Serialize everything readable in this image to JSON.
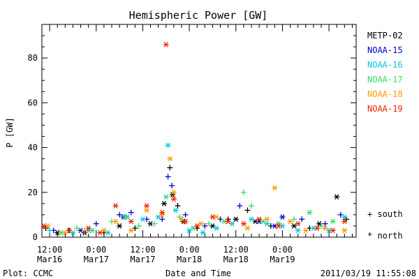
{
  "chart_data": {
    "type": "scatter",
    "title": "Hemispheric Power [GW]",
    "ylabel": "P [GW]",
    "xlabel": "Date and Time",
    "ylim": [
      0,
      95
    ],
    "xlim": [
      "2011-03-16 10:00",
      "2011-03-19 19:00"
    ],
    "y_ticks": [
      0,
      20,
      40,
      60,
      80
    ],
    "x_ticks": [
      {
        "time": "2011-03-16 12:00",
        "line1": "12:00",
        "line2": "Mar16"
      },
      {
        "time": "2011-03-17 00:00",
        "line1": "0:00",
        "line2": "Mar17"
      },
      {
        "time": "2011-03-17 12:00",
        "line1": "12:00",
        "line2": "Mar17"
      },
      {
        "time": "2011-03-18 00:00",
        "line1": "0:00",
        "line2": "Mar18"
      },
      {
        "time": "2011-03-18 12:00",
        "line1": "12:00",
        "line2": "Mar18"
      },
      {
        "time": "2011-03-19 00:00",
        "line1": "0:00",
        "line2": "Mar19"
      }
    ],
    "grid": false,
    "legend_position": "right",
    "marker_legend": [
      {
        "symbol": "+",
        "label": "south"
      },
      {
        "symbol": "*",
        "label": "north"
      }
    ],
    "footer_left": "Plot: CCMC",
    "footer_right": "2011/03/19 11:55:08",
    "series": [
      {
        "name": "METP-02",
        "color": "#000000",
        "points": [
          [
            "2011-03-16 11:00",
            "+",
            4
          ],
          [
            "2011-03-16 14:00",
            "*",
            2
          ],
          [
            "2011-03-16 17:00",
            "+",
            3
          ],
          [
            "2011-03-16 21:00",
            "*",
            2
          ],
          [
            "2011-03-17 02:00",
            "+",
            2
          ],
          [
            "2011-03-17 06:00",
            "*",
            5
          ],
          [
            "2011-03-17 10:00",
            "+",
            4
          ],
          [
            "2011-03-17 14:00",
            "*",
            6
          ],
          [
            "2011-03-17 17:30",
            "*",
            15
          ],
          [
            "2011-03-17 19:00",
            "+",
            31
          ],
          [
            "2011-03-17 19:40",
            "*",
            19
          ],
          [
            "2011-03-17 21:00",
            "+",
            14
          ],
          [
            "2011-03-17 22:30",
            "*",
            7
          ],
          [
            "2011-03-18 02:00",
            "+",
            4
          ],
          [
            "2011-03-18 06:00",
            "*",
            5
          ],
          [
            "2011-03-18 10:00",
            "+",
            8
          ],
          [
            "2011-03-18 12:00",
            "*",
            8
          ],
          [
            "2011-03-18 15:00",
            "+",
            12
          ],
          [
            "2011-03-18 17:00",
            "*",
            7
          ],
          [
            "2011-03-18 21:00",
            "+",
            5
          ],
          [
            "2011-03-19 03:00",
            "*",
            5
          ],
          [
            "2011-03-19 07:00",
            "+",
            4
          ],
          [
            "2011-03-19 09:30",
            "*",
            6
          ],
          [
            "2011-03-19 14:00",
            "*",
            18
          ],
          [
            "2011-03-19 16:30",
            "+",
            8
          ]
        ]
      },
      {
        "name": "NOAA-15",
        "color": "#0000cc",
        "points": [
          [
            "2011-03-16 13:00",
            "+",
            3
          ],
          [
            "2011-03-16 20:00",
            "*",
            3
          ],
          [
            "2011-03-17 00:00",
            "+",
            6
          ],
          [
            "2011-03-17 06:00",
            "+",
            10
          ],
          [
            "2011-03-17 07:00",
            "*",
            9
          ],
          [
            "2011-03-17 09:00",
            "+",
            11
          ],
          [
            "2011-03-17 13:00",
            "+",
            8
          ],
          [
            "2011-03-17 17:00",
            "+",
            8
          ],
          [
            "2011-03-17 18:30",
            "+",
            27
          ],
          [
            "2011-03-17 19:30",
            "+",
            23
          ],
          [
            "2011-03-17 23:00",
            "+",
            10
          ],
          [
            "2011-03-18 04:00",
            "+",
            5
          ],
          [
            "2011-03-18 08:00",
            "+",
            8
          ],
          [
            "2011-03-18 13:00",
            "+",
            14
          ],
          [
            "2011-03-18 18:00",
            "*",
            7
          ],
          [
            "2011-03-18 22:00",
            "*",
            5
          ],
          [
            "2011-03-19 00:00",
            "*",
            9
          ],
          [
            "2011-03-19 05:00",
            "+",
            8
          ],
          [
            "2011-03-19 11:00",
            "+",
            6
          ],
          [
            "2011-03-19 15:00",
            "+",
            10
          ]
        ]
      },
      {
        "name": "NOAA-16",
        "color": "#00c8e0",
        "points": [
          [
            "2011-03-16 12:00",
            "+",
            3
          ],
          [
            "2011-03-16 18:00",
            "*",
            2
          ],
          [
            "2011-03-16 22:00",
            "*",
            3
          ],
          [
            "2011-03-17 03:00",
            "*",
            2
          ],
          [
            "2011-03-17 08:00",
            "*",
            9
          ],
          [
            "2011-03-17 12:00",
            "*",
            8
          ],
          [
            "2011-03-17 16:00",
            "*",
            9
          ],
          [
            "2011-03-17 18:30",
            "*",
            41
          ],
          [
            "2011-03-17 20:30",
            "*",
            12
          ],
          [
            "2011-03-18 00:00",
            "*",
            3
          ],
          [
            "2011-03-18 03:30",
            "*",
            2
          ],
          [
            "2011-03-18 07:00",
            "*",
            4
          ],
          [
            "2011-03-18 11:00",
            "*",
            6
          ],
          [
            "2011-03-18 16:00",
            "*",
            8
          ],
          [
            "2011-03-18 20:00",
            "*",
            6
          ],
          [
            "2011-03-19 00:00",
            "*",
            5
          ],
          [
            "2011-03-19 04:00",
            "*",
            3
          ],
          [
            "2011-03-19 08:00",
            "*",
            4
          ],
          [
            "2011-03-19 12:00",
            "*",
            3
          ],
          [
            "2011-03-19 16:00",
            "*",
            9
          ]
        ]
      },
      {
        "name": "NOAA-17",
        "color": "#33dd66",
        "points": [
          [
            "2011-03-16 15:00",
            "*",
            2
          ],
          [
            "2011-03-16 19:00",
            "+",
            4
          ],
          [
            "2011-03-16 23:00",
            "*",
            3
          ],
          [
            "2011-03-17 04:00",
            "+",
            7
          ],
          [
            "2011-03-17 07:30",
            "*",
            9
          ],
          [
            "2011-03-17 11:00",
            "+",
            5
          ],
          [
            "2011-03-17 15:00",
            "+",
            6
          ],
          [
            "2011-03-17 18:00",
            "*",
            18
          ],
          [
            "2011-03-17 21:30",
            "+",
            9
          ],
          [
            "2011-03-18 01:00",
            "*",
            4
          ],
          [
            "2011-03-18 05:00",
            "+",
            6
          ],
          [
            "2011-03-18 09:00",
            "*",
            7
          ],
          [
            "2011-03-18 14:00",
            "+",
            20
          ],
          [
            "2011-03-18 16:00",
            "+",
            14
          ],
          [
            "2011-03-18 19:00",
            "*",
            7
          ],
          [
            "2011-03-18 23:00",
            "*",
            6
          ],
          [
            "2011-03-19 03:00",
            "+",
            8
          ],
          [
            "2011-03-19 07:00",
            "*",
            11
          ],
          [
            "2011-03-19 10:00",
            "+",
            5
          ],
          [
            "2011-03-19 13:00",
            "*",
            7
          ]
        ]
      },
      {
        "name": "NOAA-18",
        "color": "#ff9900",
        "points": [
          [
            "2011-03-16 11:30",
            "*",
            5
          ],
          [
            "2011-03-16 16:00",
            "*",
            2
          ],
          [
            "2011-03-16 21:00",
            "+",
            3
          ],
          [
            "2011-03-17 02:00",
            "*",
            3
          ],
          [
            "2011-03-17 05:00",
            "*",
            7
          ],
          [
            "2011-03-17 09:00",
            "*",
            3
          ],
          [
            "2011-03-17 13:00",
            "*",
            12
          ],
          [
            "2011-03-17 17:00",
            "*",
            10
          ],
          [
            "2011-03-17 19:00",
            "*",
            35
          ],
          [
            "2011-03-17 20:00",
            "*",
            20
          ],
          [
            "2011-03-17 22:00",
            "*",
            8
          ],
          [
            "2011-03-18 03:00",
            "*",
            6
          ],
          [
            "2011-03-18 07:00",
            "*",
            9
          ],
          [
            "2011-03-18 10:00",
            "*",
            7
          ],
          [
            "2011-03-18 15:00",
            "*",
            4
          ],
          [
            "2011-03-18 20:00",
            "*",
            8
          ],
          [
            "2011-03-18 22:00",
            "*",
            22
          ],
          [
            "2011-03-19 02:00",
            "*",
            7
          ],
          [
            "2011-03-19 06:00",
            "*",
            3
          ],
          [
            "2011-03-19 11:00",
            "*",
            4
          ],
          [
            "2011-03-19 16:00",
            "*",
            3
          ]
        ]
      },
      {
        "name": "NOAA-19",
        "color": "#ee2200",
        "points": [
          [
            "2011-03-16 10:30",
            "*",
            5
          ],
          [
            "2011-03-16 17:00",
            "*",
            3
          ],
          [
            "2011-03-16 22:00",
            "*",
            4
          ],
          [
            "2011-03-17 01:00",
            "*",
            2
          ],
          [
            "2011-03-17 05:00",
            "*",
            14
          ],
          [
            "2011-03-17 09:00",
            "*",
            7
          ],
          [
            "2011-03-17 13:00",
            "*",
            14
          ],
          [
            "2011-03-17 17:00",
            "*",
            11
          ],
          [
            "2011-03-17 18:00",
            "*",
            86
          ],
          [
            "2011-03-17 20:00",
            "*",
            17
          ],
          [
            "2011-03-17 23:00",
            "*",
            7
          ],
          [
            "2011-03-18 02:00",
            "*",
            5
          ],
          [
            "2011-03-18 06:00",
            "*",
            9
          ],
          [
            "2011-03-18 10:00",
            "*",
            7
          ],
          [
            "2011-03-18 14:00",
            "*",
            6
          ],
          [
            "2011-03-18 18:00",
            "*",
            8
          ],
          [
            "2011-03-18 23:00",
            "*",
            5
          ],
          [
            "2011-03-19 04:00",
            "*",
            6
          ],
          [
            "2011-03-19 09:00",
            "*",
            4
          ],
          [
            "2011-03-19 13:00",
            "*",
            3
          ],
          [
            "2011-03-19 16:00",
            "*",
            7
          ]
        ]
      }
    ]
  }
}
